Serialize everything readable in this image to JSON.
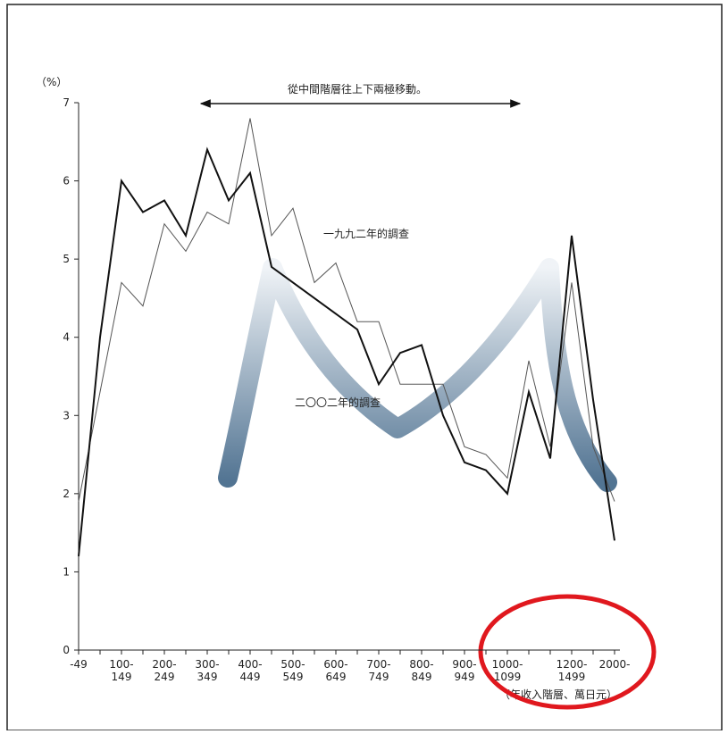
{
  "chart_data": {
    "type": "line",
    "y_label": "（%）",
    "annotation": "從中間階層往上下兩極移動。",
    "x_label": "（年收入階層、萬日元）",
    "categories": [
      "-49",
      null,
      "100-\n149",
      null,
      "200-\n249",
      null,
      "300-\n349",
      null,
      "400-\n449",
      null,
      "500-\n549",
      null,
      "600-\n649",
      null,
      "700-\n749",
      null,
      "800-\n849",
      null,
      "900-\n949",
      null,
      "1000-\n1099",
      null,
      null,
      "1200-\n1499",
      null,
      "2000-"
    ],
    "series": [
      {
        "name": "一九九二年的調查",
        "color": "#555555",
        "width": 1,
        "values": [
          1.9,
          3.3,
          4.7,
          4.4,
          5.45,
          5.1,
          5.6,
          5.45,
          6.8,
          5.3,
          5.65,
          4.7,
          4.95,
          4.2,
          4.2,
          3.4,
          3.4,
          3.4,
          2.6,
          2.5,
          2.2,
          3.7,
          2.6,
          4.7,
          2.6,
          1.9
        ]
      },
      {
        "name": "二〇〇二年的調查",
        "color": "#111111",
        "width": 2,
        "values": [
          1.2,
          4.0,
          6.0,
          5.6,
          5.75,
          5.3,
          6.4,
          5.75,
          6.1,
          4.9,
          4.7,
          4.5,
          4.3,
          4.1,
          3.4,
          3.8,
          3.9,
          3.0,
          2.4,
          2.3,
          2.0,
          3.3,
          2.45,
          5.3,
          3.2,
          1.4
        ]
      }
    ],
    "ylim": [
      0,
      7
    ],
    "yticks": [
      0,
      1,
      2,
      3,
      4,
      5,
      6,
      7
    ]
  }
}
